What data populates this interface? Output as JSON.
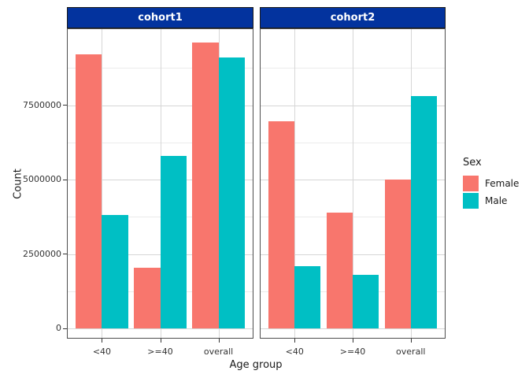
{
  "colors": {
    "female": "#F8766D",
    "male": "#00BFC4",
    "strip_fill": "#03339E",
    "strip_text": "#FFFFFF",
    "panel_border": "#4D4D4D",
    "grid_major": "#D6D6D6",
    "grid_minor": "#EBEBEB",
    "axis_text": "#333333",
    "background": "#FFFFFF"
  },
  "chart_data": {
    "type": "bar",
    "layout_hint": "two facet panels side by side, dodged bars, legend on right, white panel background with light gray major and minor horizontal gridlines and vertical gridlines at group centers",
    "xlabel": "Age group",
    "ylabel": "Count",
    "categories": [
      "<40",
      ">=40",
      "overall"
    ],
    "yticks": [
      0,
      2500000,
      5000000,
      7500000
    ],
    "ytick_labels": [
      "0",
      "2500000",
      "5000000",
      "7500000"
    ],
    "yminor": [
      1250000,
      3750000,
      6250000,
      8750000
    ],
    "ylim": [
      0,
      10100000
    ],
    "legend": {
      "title": "Sex",
      "position": "right",
      "entries": [
        {
          "label": "Female",
          "color": "#F8766D"
        },
        {
          "label": "Male",
          "color": "#00BFC4"
        }
      ]
    },
    "facets": [
      {
        "label": "cohort1",
        "series": [
          {
            "name": "Female",
            "color": "#F8766D",
            "values": [
              9200000,
              2050000,
              9600000
            ]
          },
          {
            "name": "Male",
            "color": "#00BFC4",
            "values": [
              3800000,
              5800000,
              9100000
            ]
          }
        ]
      },
      {
        "label": "cohort2",
        "series": [
          {
            "name": "Female",
            "color": "#F8766D",
            "values": [
              6950000,
              3900000,
              5000000
            ]
          },
          {
            "name": "Male",
            "color": "#00BFC4",
            "values": [
              2100000,
              1800000,
              7800000
            ]
          }
        ]
      }
    ]
  }
}
